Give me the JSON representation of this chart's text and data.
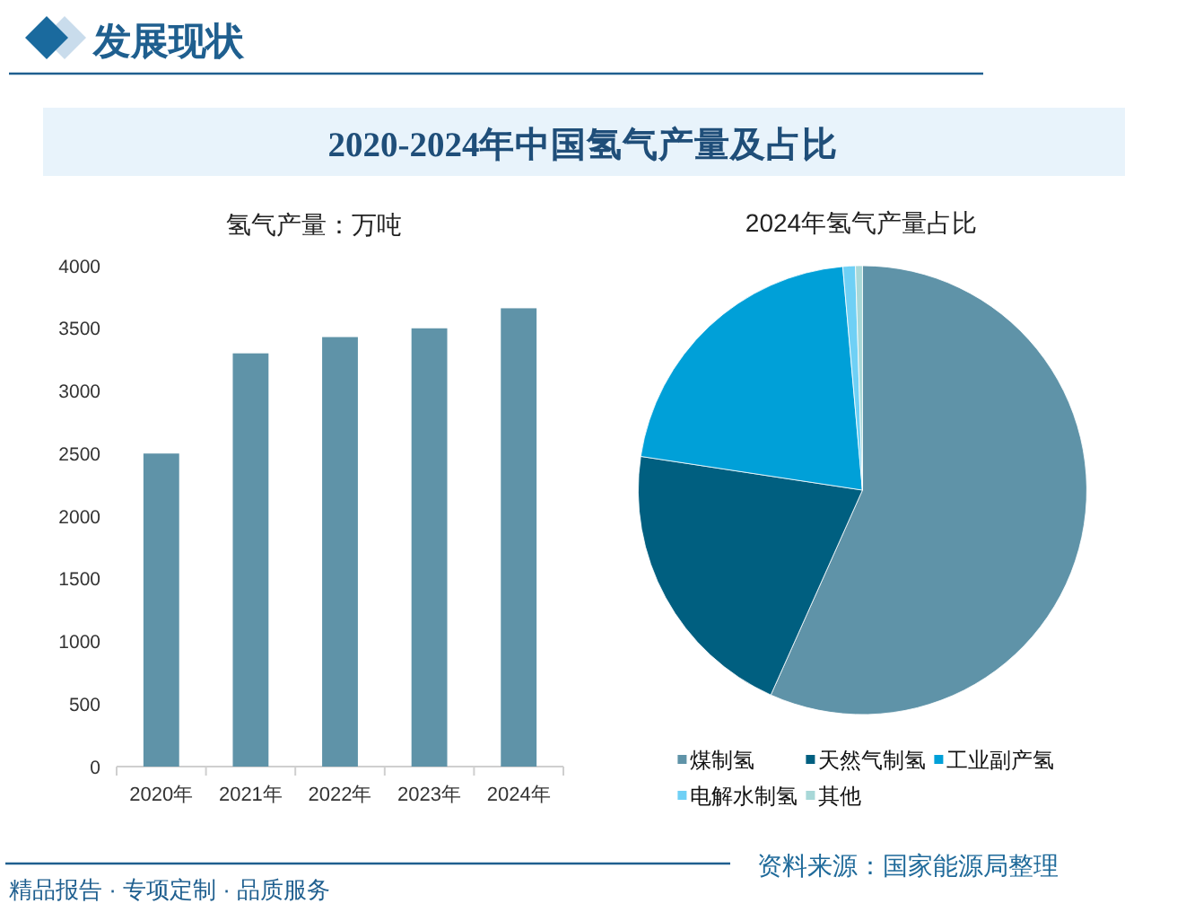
{
  "chart_data": [
    {
      "type": "bar",
      "title": "2020-2024年中国氢气产量及占比",
      "ylabel": "氢气产量：万吨",
      "categories": [
        "2020年",
        "2021年",
        "2022年",
        "2023年",
        "2024年"
      ],
      "values": [
        2500,
        3300,
        3430,
        3500,
        3660
      ],
      "color": "#5f93a8",
      "ylim": [
        0,
        4000
      ],
      "yticks": [
        0,
        500,
        1000,
        1500,
        2000,
        2500,
        3000,
        3500,
        4000
      ],
      "annotations": [
        "发展现状",
        "资料来源：国家能源局整理",
        "精品报告 · 专项定制 · 品质服务"
      ]
    },
    {
      "type": "pie",
      "title": "2024年氢气产量占比",
      "categories": [
        "煤制氢",
        "天然气制氢",
        "工业副产氢",
        "电解水制氢",
        "其他"
      ],
      "values": [
        56.7,
        20.7,
        21.2,
        0.9,
        0.5
      ],
      "colors": [
        "#5f93a8",
        "#005f80",
        "#00a0d8",
        "#6fd0f5",
        "#a8d8d8"
      ],
      "legend": "bottom"
    }
  ]
}
